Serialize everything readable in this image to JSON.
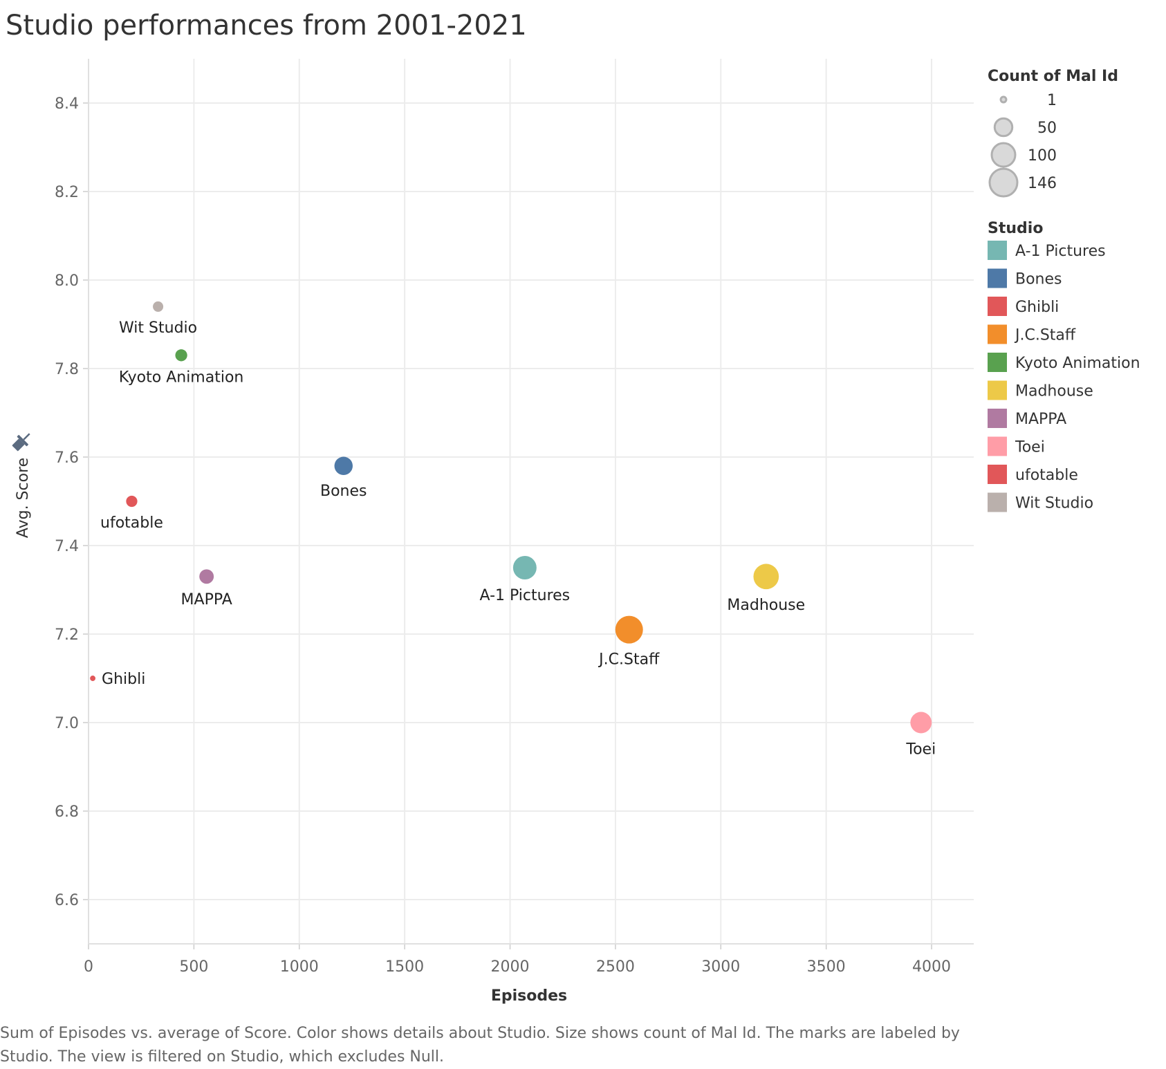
{
  "title": "Studio performances from 2001-2021",
  "caption": "Sum of Episodes vs. average of Score.  Color shows details about Studio.  Size shows count of Mal Id.  The marks are labeled by Studio. The view is filtered on Studio, which excludes Null.",
  "chart_data": {
    "type": "scatter",
    "xlabel": "Episodes",
    "ylabel": "Avg. Score",
    "xlim": [
      0,
      4200
    ],
    "ylim": [
      6.5,
      8.5
    ],
    "x_ticks": [
      0,
      500,
      1000,
      1500,
      2000,
      2500,
      3000,
      3500,
      4000
    ],
    "y_ticks": [
      "6.6",
      "6.8",
      "7.0",
      "7.2",
      "7.4",
      "7.6",
      "7.8",
      "8.0",
      "8.2",
      "8.4"
    ],
    "grid": true,
    "size_legend": {
      "title": "Count of Mal Id",
      "entries": [
        1,
        50,
        100,
        146
      ]
    },
    "color_legend": {
      "title": "Studio",
      "entries": [
        {
          "label": "A-1 Pictures",
          "color": "#76b7b2"
        },
        {
          "label": "Bones",
          "color": "#4e79a7"
        },
        {
          "label": "Ghibli",
          "color": "#e15759"
        },
        {
          "label": "J.C.Staff",
          "color": "#f28e2b"
        },
        {
          "label": "Kyoto Animation",
          "color": "#59a14f"
        },
        {
          "label": "Madhouse",
          "color": "#edc948"
        },
        {
          "label": "MAPPA",
          "color": "#b07aa1"
        },
        {
          "label": "Toei",
          "color": "#ff9da7"
        },
        {
          "label": "ufotable",
          "color": "#e15759"
        },
        {
          "label": "Wit Studio",
          "color": "#bab0ac"
        }
      ]
    },
    "points": [
      {
        "studio": "Wit Studio",
        "episodes": 330,
        "score": 7.94,
        "count": 12
      },
      {
        "studio": "Kyoto Animation",
        "episodes": 440,
        "score": 7.83,
        "count": 18
      },
      {
        "studio": "Bones",
        "episodes": 1210,
        "score": 7.58,
        "count": 55
      },
      {
        "studio": "ufotable",
        "episodes": 205,
        "score": 7.5,
        "count": 15
      },
      {
        "studio": "MAPPA",
        "episodes": 560,
        "score": 7.33,
        "count": 30
      },
      {
        "studio": "A-1 Pictures",
        "episodes": 2070,
        "score": 7.35,
        "count": 100
      },
      {
        "studio": "Madhouse",
        "episodes": 3215,
        "score": 7.33,
        "count": 120
      },
      {
        "studio": "J.C.Staff",
        "episodes": 2565,
        "score": 7.21,
        "count": 146
      },
      {
        "studio": "Ghibli",
        "episodes": 20,
        "score": 7.1,
        "count": 1
      },
      {
        "studio": "Toei",
        "episodes": 3950,
        "score": 7.0,
        "count": 80
      }
    ]
  }
}
